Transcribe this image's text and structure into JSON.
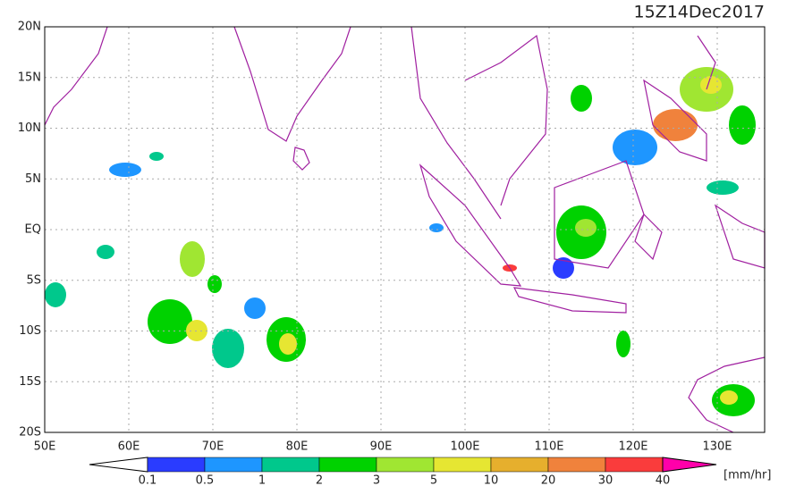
{
  "title": "15Z14Dec2017",
  "lat_labels": [
    "20N",
    "15N",
    "10N",
    "5N",
    "EQ",
    "5S",
    "10S",
    "15S",
    "20S"
  ],
  "lon_labels": [
    "50E",
    "60E",
    "70E",
    "80E",
    "90E",
    "100E",
    "110E",
    "120E",
    "130E"
  ],
  "colorbar": {
    "labels": [
      "0.1",
      "0.5",
      "1",
      "2",
      "3",
      "5",
      "10",
      "20",
      "30",
      "40"
    ],
    "colors": [
      "#2a3cff",
      "#1e96ff",
      "#00c88c",
      "#00d200",
      "#a0e632",
      "#e6e632",
      "#e6af2d",
      "#f0823c",
      "#fa3c3c"
    ],
    "over_color": "#ff00aa",
    "under_color": "#ffffff",
    "unit": "[mm/hr]"
  }
}
